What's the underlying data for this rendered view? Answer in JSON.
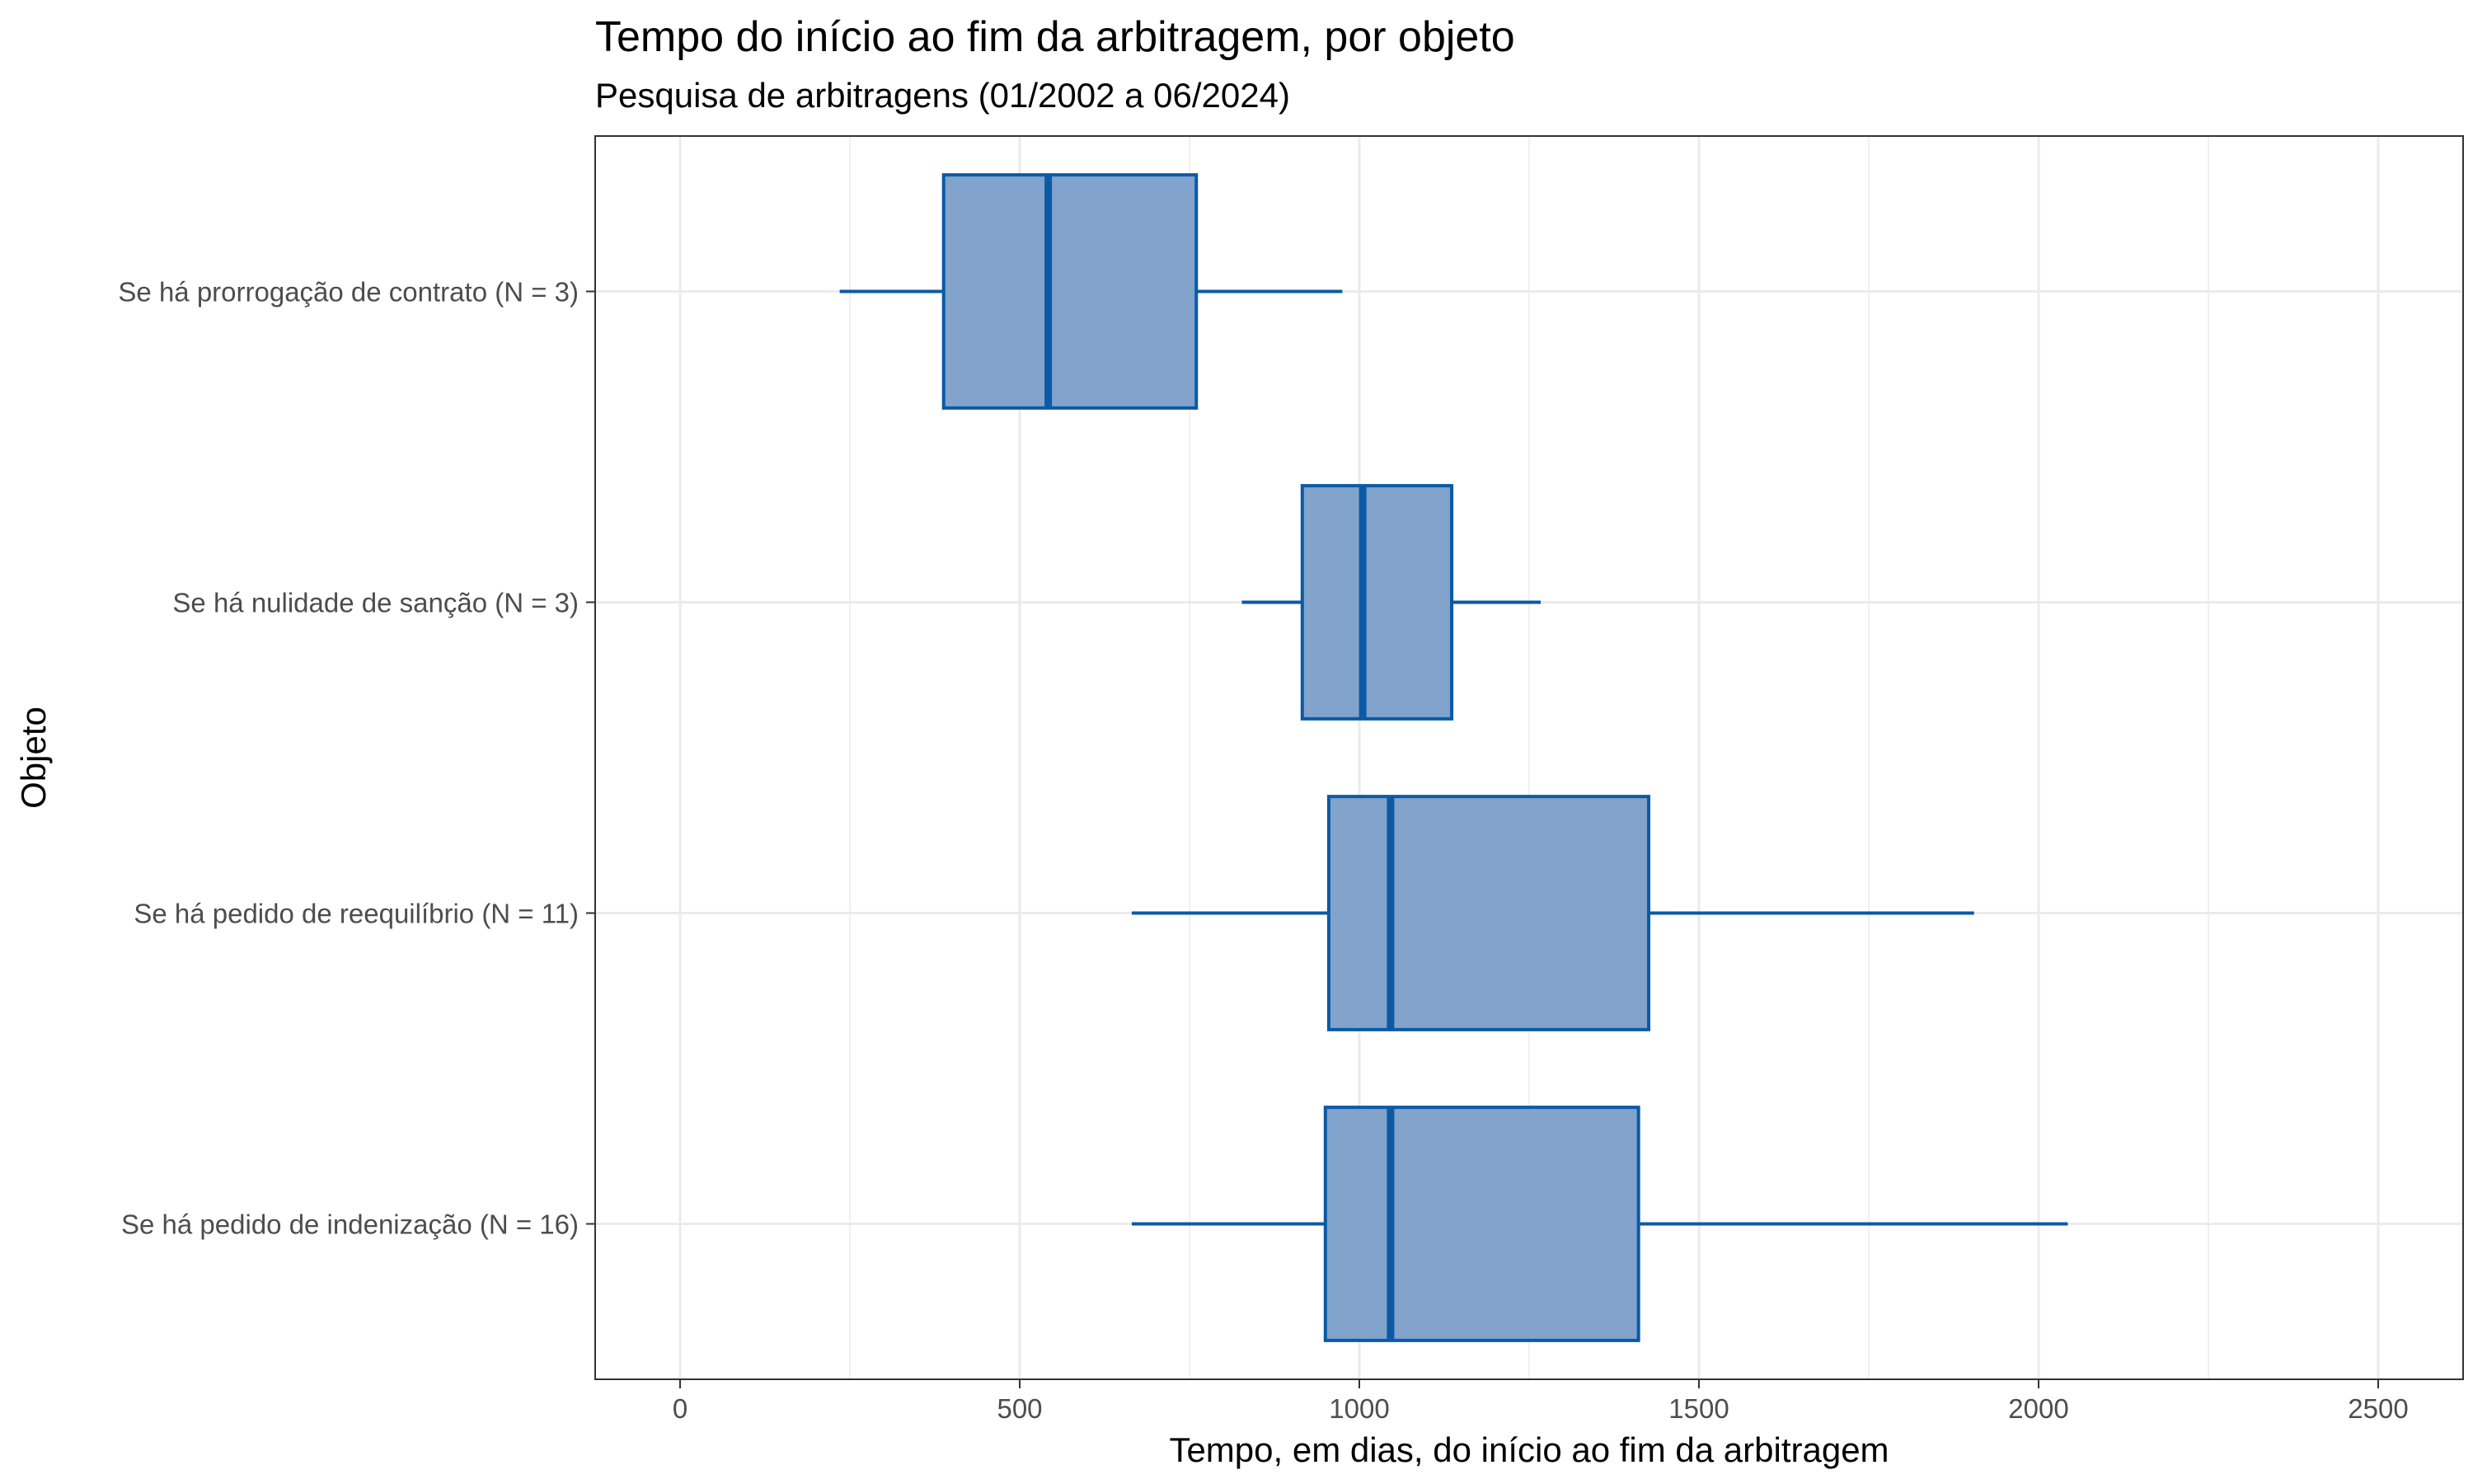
{
  "chart_data": {
    "type": "boxplot",
    "orientation": "horizontal",
    "title": "Tempo do início ao fim da arbitragem, por objeto",
    "subtitle": "Pesquisa de arbitragens (01/2002 a 06/2024)",
    "xlabel": "Tempo, em dias, do início ao fim da arbitragem",
    "ylabel": "Objeto",
    "xlim": [
      -125,
      2625
    ],
    "xticks": [
      0,
      500,
      1000,
      1500,
      2000,
      2500
    ],
    "xtick_labels": [
      "0",
      "500",
      "1000",
      "1500",
      "2000",
      "2500"
    ],
    "categories": [
      "Se há prorrogação de contrato (N = 3)",
      "Se há nulidade de sanção (N = 3)",
      "Se há pedido de reequilíbrio (N = 11)",
      "Se há pedido de indenização (N = 16)"
    ],
    "boxes": [
      {
        "min": 235,
        "q1": 388,
        "median": 542,
        "q3": 760,
        "max": 975
      },
      {
        "min": 827,
        "q1": 916,
        "median": 1005,
        "q3": 1136,
        "max": 1267
      },
      {
        "min": 665,
        "q1": 955,
        "median": 1046,
        "q3": 1426,
        "max": 1905
      },
      {
        "min": 665,
        "q1": 950,
        "median": 1046,
        "q3": 1411,
        "max": 2043
      }
    ],
    "grid": true,
    "colors": {
      "fill": "#81a3cc",
      "stroke": "#0b5aa5",
      "grid": "#ebebeb",
      "border": "#333333"
    }
  }
}
